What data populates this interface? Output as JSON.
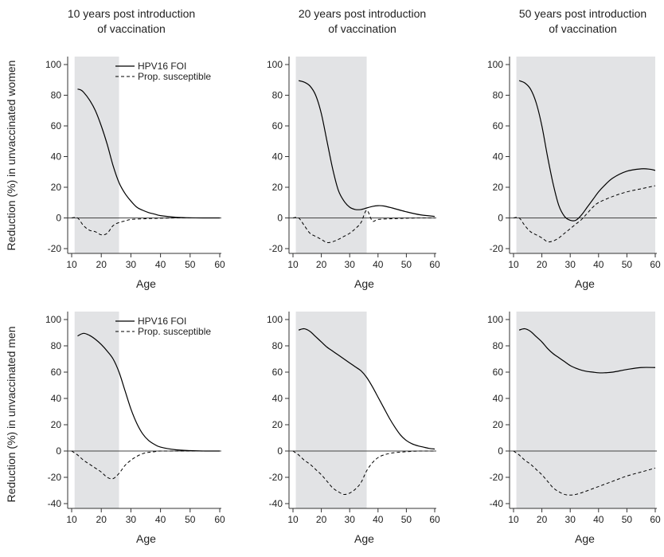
{
  "column_titles": [
    [
      "10 years post introduction",
      "of vaccination"
    ],
    [
      "20 years post introduction",
      "of vaccination"
    ],
    [
      "50 years post introduction",
      "of vaccination"
    ]
  ],
  "row_labels": [
    "Reduction (%) in unvaccinated women",
    "Reduction (%) in unvaccinated men"
  ],
  "legend": {
    "series1": "HPV16 FOI",
    "series2": "Prop. susceptible",
    "placement": "top-right"
  },
  "colors": {
    "shade": "#e2e3e5",
    "line": "#000000",
    "zero_line": "#444444"
  },
  "chart_data": [
    {
      "type": "line",
      "row": "women",
      "years_post_introduction": 10,
      "xlabel": "Age",
      "xlim": [
        10,
        60
      ],
      "ylim": [
        -20,
        100
      ],
      "xticks": [
        10,
        20,
        30,
        40,
        50,
        60
      ],
      "yticks": [
        -20,
        0,
        20,
        40,
        60,
        80,
        100
      ],
      "shaded_age_range": [
        11,
        26
      ],
      "legend_shown": true,
      "series": [
        {
          "name": "HPV16 FOI",
          "style": "solid",
          "x": [
            12,
            13,
            14,
            16,
            18,
            20,
            22,
            24,
            26,
            28,
            30,
            32,
            34,
            36,
            38,
            40,
            45,
            50,
            55,
            60
          ],
          "y": [
            84,
            83.5,
            82,
            77,
            70,
            60,
            48,
            34,
            23,
            16,
            11,
            7,
            5,
            3.5,
            2.5,
            1.5,
            0.5,
            0.1,
            0,
            0
          ]
        },
        {
          "name": "Prop. susceptible",
          "style": "dashed",
          "x": [
            10,
            12,
            14,
            16,
            18,
            20,
            22,
            24,
            26,
            28,
            30,
            35,
            40,
            45,
            50,
            60
          ],
          "y": [
            0,
            0,
            -5,
            -8,
            -9,
            -11,
            -10,
            -5,
            -3,
            -2,
            -1,
            -0.5,
            -0.2,
            0,
            0,
            0
          ]
        }
      ]
    },
    {
      "type": "line",
      "row": "women",
      "years_post_introduction": 20,
      "xlabel": "Age",
      "xlim": [
        10,
        60
      ],
      "ylim": [
        -20,
        100
      ],
      "xticks": [
        10,
        20,
        30,
        40,
        50,
        60
      ],
      "yticks": [
        -20,
        0,
        20,
        40,
        60,
        80,
        100
      ],
      "shaded_age_range": [
        11,
        36
      ],
      "series": [
        {
          "name": "HPV16 FOI",
          "style": "solid",
          "x": [
            12,
            14,
            16,
            18,
            20,
            22,
            24,
            26,
            28,
            30,
            32,
            34,
            36,
            38,
            40,
            42,
            45,
            50,
            55,
            60
          ],
          "y": [
            89.5,
            88.5,
            86,
            80,
            68,
            50,
            32,
            18,
            11,
            7,
            5.5,
            5.5,
            6.5,
            7.5,
            8,
            7.8,
            6.5,
            4,
            2,
            1
          ]
        },
        {
          "name": "Prop. susceptible",
          "style": "dashed",
          "x": [
            10,
            12,
            14,
            16,
            18,
            20,
            22,
            24,
            26,
            28,
            30,
            32,
            34,
            36,
            38,
            40,
            45,
            50,
            55,
            60
          ],
          "y": [
            0,
            0,
            -5,
            -10,
            -12,
            -14,
            -16,
            -15.5,
            -14,
            -12,
            -10,
            -7,
            -3,
            5,
            -2,
            -1,
            -0.5,
            -0.2,
            0,
            0
          ]
        }
      ]
    },
    {
      "type": "line",
      "row": "women",
      "years_post_introduction": 50,
      "xlabel": "Age",
      "xlim": [
        10,
        60
      ],
      "ylim": [
        -20,
        100
      ],
      "xticks": [
        10,
        20,
        30,
        40,
        50,
        60
      ],
      "yticks": [
        -20,
        0,
        20,
        40,
        60,
        80,
        100
      ],
      "shaded_age_range": [
        11,
        60
      ],
      "series": [
        {
          "name": "HPV16 FOI",
          "style": "solid",
          "x": [
            12,
            14,
            16,
            18,
            20,
            22,
            24,
            26,
            28,
            30,
            32,
            34,
            36,
            38,
            40,
            42,
            45,
            50,
            55,
            58,
            60
          ],
          "y": [
            89.5,
            88,
            84,
            75,
            60,
            40,
            22,
            8,
            1,
            -1.5,
            -1.5,
            2,
            7,
            12,
            17,
            21,
            26,
            30.5,
            32,
            31.8,
            31
          ]
        },
        {
          "name": "Prop. susceptible",
          "style": "dashed",
          "x": [
            10,
            12,
            14,
            16,
            18,
            20,
            22,
            24,
            26,
            28,
            30,
            32,
            34,
            36,
            38,
            40,
            45,
            50,
            55,
            60
          ],
          "y": [
            0,
            0,
            -5,
            -9,
            -11,
            -13,
            -15.5,
            -15,
            -13,
            -10,
            -7,
            -4,
            -1,
            3,
            7,
            10,
            14,
            17,
            19,
            21
          ]
        }
      ]
    },
    {
      "type": "line",
      "row": "men",
      "years_post_introduction": 10,
      "xlabel": "Age",
      "xlim": [
        10,
        60
      ],
      "ylim": [
        -40,
        100
      ],
      "xticks": [
        10,
        20,
        30,
        40,
        50,
        60
      ],
      "yticks": [
        -40,
        -20,
        0,
        20,
        40,
        60,
        80,
        100
      ],
      "shaded_age_range": [
        11,
        26
      ],
      "legend_shown": true,
      "series": [
        {
          "name": "HPV16 FOI",
          "style": "solid",
          "x": [
            12,
            14,
            16,
            18,
            20,
            22,
            24,
            26,
            28,
            30,
            32,
            34,
            36,
            38,
            40,
            45,
            50,
            55,
            60
          ],
          "y": [
            87.5,
            89.5,
            88,
            85,
            81,
            76,
            70,
            60,
            46,
            32,
            21,
            13,
            8,
            5,
            3,
            1,
            0.3,
            0,
            0
          ]
        },
        {
          "name": "Prop. susceptible",
          "style": "dashed",
          "x": [
            10,
            12,
            14,
            16,
            18,
            20,
            22,
            24,
            26,
            28,
            30,
            32,
            34,
            36,
            38,
            40,
            45,
            50,
            60
          ],
          "y": [
            0,
            -3,
            -7,
            -10,
            -13,
            -16,
            -20,
            -21,
            -17,
            -11,
            -7,
            -4,
            -2,
            -1,
            -0.5,
            0,
            0,
            0,
            0
          ]
        }
      ]
    },
    {
      "type": "line",
      "row": "men",
      "years_post_introduction": 20,
      "xlabel": "Age",
      "xlim": [
        10,
        60
      ],
      "ylim": [
        -40,
        100
      ],
      "xticks": [
        10,
        20,
        30,
        40,
        50,
        60
      ],
      "yticks": [
        -40,
        -20,
        0,
        20,
        40,
        60,
        80,
        100
      ],
      "shaded_age_range": [
        11,
        36
      ],
      "series": [
        {
          "name": "HPV16 FOI",
          "style": "solid",
          "x": [
            12,
            14,
            16,
            18,
            20,
            22,
            24,
            26,
            28,
            30,
            32,
            34,
            36,
            38,
            40,
            42,
            44,
            46,
            48,
            50,
            52,
            54,
            56,
            58,
            60
          ],
          "y": [
            92,
            93,
            91,
            87,
            83,
            79,
            76,
            73,
            70,
            67,
            64,
            61,
            56,
            49,
            41,
            33,
            25,
            18,
            12,
            8,
            5.5,
            4,
            3,
            2,
            1.5
          ]
        },
        {
          "name": "Prop. susceptible",
          "style": "dashed",
          "x": [
            10,
            12,
            14,
            16,
            18,
            20,
            22,
            24,
            26,
            28,
            30,
            32,
            34,
            36,
            38,
            40,
            42,
            45,
            50,
            55,
            60
          ],
          "y": [
            0,
            -3,
            -7,
            -10,
            -14,
            -18,
            -23,
            -28,
            -31,
            -33,
            -32,
            -29,
            -24,
            -15,
            -9,
            -5,
            -3,
            -1.5,
            -0.5,
            0,
            0
          ]
        }
      ]
    },
    {
      "type": "line",
      "row": "men",
      "years_post_introduction": 50,
      "xlabel": "Age",
      "xlim": [
        10,
        60
      ],
      "ylim": [
        -40,
        100
      ],
      "xticks": [
        10,
        20,
        30,
        40,
        50,
        60
      ],
      "yticks": [
        -40,
        -20,
        0,
        20,
        40,
        60,
        80,
        100
      ],
      "shaded_age_range": [
        11,
        60
      ],
      "series": [
        {
          "name": "HPV16 FOI",
          "style": "solid",
          "x": [
            12,
            14,
            16,
            18,
            20,
            22,
            24,
            26,
            28,
            30,
            32,
            34,
            36,
            38,
            40,
            42,
            45,
            50,
            55,
            60
          ],
          "y": [
            92,
            93,
            91,
            87,
            83,
            78,
            74,
            71,
            68,
            65,
            63,
            61.5,
            60.5,
            60,
            59.5,
            59.5,
            60,
            62,
            63.5,
            63.5
          ]
        },
        {
          "name": "Prop. susceptible",
          "style": "dashed",
          "x": [
            10,
            12,
            14,
            16,
            18,
            20,
            22,
            24,
            26,
            28,
            30,
            32,
            35,
            40,
            45,
            50,
            55,
            60
          ],
          "y": [
            0,
            -3,
            -7,
            -10,
            -14,
            -18,
            -23,
            -28,
            -31,
            -33,
            -33.5,
            -33,
            -31,
            -27,
            -23,
            -19,
            -16,
            -13
          ]
        }
      ]
    }
  ]
}
